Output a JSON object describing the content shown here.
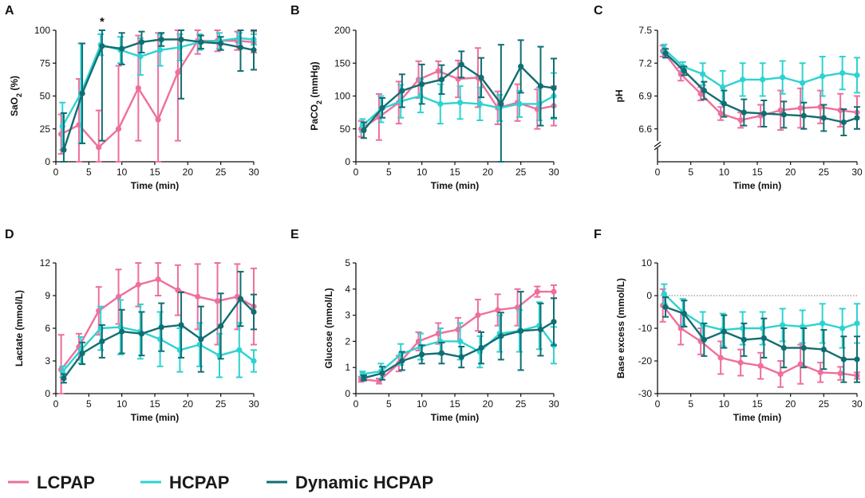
{
  "legend": [
    {
      "name": "LCPAP",
      "color": "#ee6f9c"
    },
    {
      "name": "HCPAP",
      "color": "#2ed2d2"
    },
    {
      "name": "Dynamic HCPAP",
      "color": "#116e72"
    }
  ],
  "chart_data": [
    {
      "type": "line",
      "panel": "A",
      "ylabel_parts": [
        {
          "t": "SaO"
        },
        {
          "t": "2",
          "sub": true
        },
        {
          "t": " (%)"
        }
      ],
      "xlabel": "Time (min)",
      "xlim": [
        0,
        30
      ],
      "xticks": [
        0,
        5,
        10,
        15,
        20,
        25,
        30
      ],
      "ylim": [
        0,
        100
      ],
      "yticks": [
        0,
        25,
        50,
        75,
        100
      ],
      "annotation": {
        "text": "*",
        "x": 7,
        "y": 100
      },
      "series": [
        {
          "name": "LCPAP",
          "x": [
            0.8,
            3.5,
            6.5,
            9.5,
            12.5,
            15.5,
            18.5,
            21.5,
            24.5,
            27.5,
            30
          ],
          "y": [
            21,
            28,
            11,
            25,
            56,
            32,
            68,
            92,
            92,
            92,
            91
          ],
          "err": [
            15,
            35,
            28,
            48,
            40,
            66,
            52,
            10,
            8,
            7,
            8
          ]
        },
        {
          "name": "HCPAP",
          "x": [
            1,
            3.8,
            6.8,
            9.8,
            12.8,
            15.8,
            18.8,
            21.8,
            24.8,
            27.8,
            30
          ],
          "y": [
            27,
            52,
            89,
            85,
            80,
            85,
            87,
            91,
            92,
            94,
            93
          ],
          "err": [
            18,
            38,
            8,
            10,
            14,
            12,
            10,
            6,
            6,
            4,
            4
          ]
        },
        {
          "name": "Dynamic HCPAP",
          "x": [
            1.2,
            4,
            7,
            10,
            13,
            16,
            19,
            22,
            25,
            28,
            30
          ],
          "y": [
            9,
            52,
            88,
            86,
            91,
            93,
            93,
            91,
            90,
            87,
            85
          ],
          "err": [
            28,
            38,
            72,
            12,
            8,
            5,
            45,
            5,
            5,
            18,
            15
          ]
        }
      ]
    },
    {
      "type": "line",
      "panel": "B",
      "ylabel_parts": [
        {
          "t": "PaCO"
        },
        {
          "t": "2",
          "sub": true
        },
        {
          "t": " (mmHg)"
        }
      ],
      "xlabel": "Time (min)",
      "xlim": [
        0,
        30
      ],
      "xticks": [
        0,
        5,
        10,
        15,
        20,
        25,
        30
      ],
      "ylim": [
        0,
        200
      ],
      "yticks": [
        0,
        50,
        100,
        150,
        200
      ],
      "series": [
        {
          "name": "LCPAP",
          "x": [
            0.8,
            3.5,
            6.5,
            9.5,
            12.5,
            15.5,
            18.5,
            21.5,
            24.5,
            27.5,
            30
          ],
          "y": [
            50,
            68,
            90,
            125,
            138,
            126,
            128,
            82,
            90,
            80,
            85
          ],
          "err": [
            12,
            35,
            32,
            28,
            15,
            28,
            45,
            25,
            28,
            30,
            30
          ]
        },
        {
          "name": "HCPAP",
          "x": [
            1,
            3.8,
            6.8,
            9.8,
            12.8,
            15.8,
            18.8,
            21.8,
            24.8,
            27.8,
            30
          ],
          "y": [
            55,
            80,
            92,
            100,
            88,
            90,
            88,
            82,
            88,
            88,
            100
          ],
          "err": [
            10,
            20,
            25,
            25,
            30,
            25,
            25,
            20,
            20,
            25,
            35
          ]
        },
        {
          "name": "Dynamic HCPAP",
          "x": [
            1.2,
            4,
            7,
            10,
            13,
            16,
            19,
            22,
            25,
            28,
            30
          ],
          "y": [
            48,
            82,
            108,
            118,
            125,
            148,
            128,
            88,
            145,
            115,
            112
          ],
          "err": [
            12,
            15,
            25,
            30,
            22,
            20,
            30,
            90,
            40,
            60,
            45
          ]
        }
      ]
    },
    {
      "type": "line",
      "panel": "C",
      "ylabel_parts": [
        {
          "t": "pH"
        }
      ],
      "xlabel": "Time (min)",
      "xlim": [
        0,
        30
      ],
      "xticks": [
        0,
        5,
        10,
        15,
        20,
        25,
        30
      ],
      "ylim": [
        6.3,
        7.5
      ],
      "yticks": [
        6.6,
        6.9,
        7.2,
        7.5
      ],
      "ybreak": true,
      "series": [
        {
          "name": "LCPAP",
          "x": [
            0.8,
            3.5,
            6.5,
            9.5,
            12.5,
            15.5,
            18.5,
            21.5,
            24.5,
            27.5,
            30
          ],
          "y": [
            7.31,
            7.1,
            6.92,
            6.74,
            6.68,
            6.72,
            6.77,
            6.79,
            6.8,
            6.77,
            6.75
          ],
          "err": [
            0.05,
            0.06,
            0.06,
            0.06,
            0.07,
            0.1,
            0.18,
            0.18,
            0.15,
            0.15,
            0.15
          ]
        },
        {
          "name": "HCPAP",
          "x": [
            1,
            3.8,
            6.8,
            9.8,
            12.8,
            15.8,
            18.8,
            21.8,
            24.8,
            27.8,
            30
          ],
          "y": [
            7.33,
            7.17,
            7.1,
            6.98,
            7.05,
            7.05,
            7.07,
            7.02,
            7.08,
            7.11,
            7.09
          ],
          "err": [
            0.04,
            0.04,
            0.1,
            0.15,
            0.15,
            0.15,
            0.15,
            0.18,
            0.18,
            0.15,
            0.16
          ]
        },
        {
          "name": "Dynamic HCPAP",
          "x": [
            1.2,
            4,
            7,
            10,
            13,
            16,
            19,
            22,
            25,
            28,
            30
          ],
          "y": [
            7.29,
            7.13,
            6.95,
            6.83,
            6.75,
            6.74,
            6.73,
            6.72,
            6.7,
            6.66,
            6.7
          ],
          "err": [
            0.04,
            0.04,
            0.08,
            0.12,
            0.12,
            0.12,
            0.12,
            0.12,
            0.12,
            0.12,
            0.1
          ]
        }
      ]
    },
    {
      "type": "line",
      "panel": "D",
      "ylabel_parts": [
        {
          "t": "Lactate (mmol/L)"
        }
      ],
      "xlabel": "Time (min)",
      "xlim": [
        0,
        30
      ],
      "xticks": [
        0,
        5,
        10,
        15,
        20,
        25,
        30
      ],
      "ylim": [
        0,
        12
      ],
      "yticks": [
        0,
        3,
        6,
        9,
        12
      ],
      "series": [
        {
          "name": "LCPAP",
          "x": [
            0.8,
            3.5,
            6.5,
            9.5,
            12.5,
            15.5,
            18.5,
            21.5,
            24.5,
            27.5,
            30
          ],
          "y": [
            2.2,
            4.3,
            7.6,
            8.9,
            10.0,
            10.5,
            9.5,
            8.9,
            8.5,
            8.9,
            8.0
          ],
          "err": [
            3.2,
            1.2,
            2.2,
            2.5,
            2.0,
            1.5,
            2.3,
            3.0,
            4.0,
            3.0,
            3.5
          ]
        },
        {
          "name": "HCPAP",
          "x": [
            1,
            3.8,
            6.8,
            9.8,
            12.8,
            15.8,
            18.8,
            21.8,
            24.8,
            27.8,
            30
          ],
          "y": [
            2.0,
            4.0,
            6.0,
            6.1,
            5.7,
            5.0,
            4.0,
            4.5,
            3.5,
            4.0,
            3.0
          ],
          "err": [
            0.5,
            1.2,
            2.0,
            2.5,
            2.5,
            2.5,
            2.0,
            2.0,
            2.0,
            2.5,
            1.0
          ]
        },
        {
          "name": "Dynamic HCPAP",
          "x": [
            1.2,
            4,
            7,
            10,
            13,
            16,
            19,
            22,
            25,
            28,
            30
          ],
          "y": [
            1.4,
            3.7,
            4.8,
            5.7,
            5.5,
            6.1,
            6.3,
            5.0,
            6.2,
            8.7,
            7.5
          ],
          "err": [
            0.4,
            1.0,
            1.5,
            2.0,
            2.0,
            2.2,
            3.0,
            3.0,
            3.0,
            2.5,
            1.6
          ]
        }
      ]
    },
    {
      "type": "line",
      "panel": "E",
      "ylabel_parts": [
        {
          "t": "Glucose (mmol/L)"
        }
      ],
      "xlabel": "Time (min)",
      "xlim": [
        0,
        30
      ],
      "xticks": [
        0,
        5,
        10,
        15,
        20,
        25,
        30
      ],
      "ylim": [
        0,
        5
      ],
      "yticks": [
        0,
        1,
        2,
        3,
        4,
        5
      ],
      "series": [
        {
          "name": "LCPAP",
          "x": [
            0.8,
            3.5,
            6.5,
            9.5,
            12.5,
            15.5,
            18.5,
            21.5,
            24.5,
            27.5,
            30
          ],
          "y": [
            0.55,
            0.48,
            1.15,
            2.0,
            2.3,
            2.45,
            3.0,
            3.2,
            3.3,
            3.9,
            3.9
          ],
          "err": [
            0.1,
            0.1,
            0.3,
            0.35,
            0.4,
            0.45,
            0.6,
            0.6,
            0.7,
            0.2,
            0.25
          ]
        },
        {
          "name": "HCPAP",
          "x": [
            1,
            3.8,
            6.8,
            9.8,
            12.8,
            15.8,
            18.8,
            21.8,
            24.8,
            27.8,
            30
          ],
          "y": [
            0.75,
            0.85,
            1.5,
            1.8,
            2.0,
            2.0,
            1.6,
            2.3,
            2.4,
            2.6,
            1.85
          ],
          "err": [
            0.1,
            0.3,
            0.4,
            0.5,
            0.5,
            0.7,
            0.6,
            0.7,
            0.8,
            0.9,
            0.7
          ]
        },
        {
          "name": "Dynamic HCPAP",
          "x": [
            1.2,
            4,
            7,
            10,
            13,
            16,
            19,
            22,
            25,
            28,
            30
          ],
          "y": [
            0.6,
            0.78,
            1.25,
            1.5,
            1.55,
            1.4,
            1.75,
            2.2,
            2.4,
            2.45,
            2.75
          ],
          "err": [
            0.1,
            0.25,
            0.35,
            0.35,
            0.4,
            0.4,
            0.6,
            0.9,
            1.5,
            1.0,
            0.9
          ]
        }
      ]
    },
    {
      "type": "line",
      "panel": "F",
      "ylabel_parts": [
        {
          "t": "Base excess (mmol/L)"
        }
      ],
      "xlabel": "Time (min)",
      "xlim": [
        0,
        30
      ],
      "xticks": [
        0,
        5,
        10,
        15,
        20,
        25,
        30
      ],
      "ylim": [
        -30,
        10
      ],
      "yticks": [
        -30,
        -20,
        -10,
        0,
        10
      ],
      "zero_line": 0,
      "series": [
        {
          "name": "LCPAP",
          "x": [
            0.8,
            3.5,
            6.5,
            9.5,
            12.5,
            15.5,
            18.5,
            21.5,
            24.5,
            27.5,
            30
          ],
          "y": [
            -3,
            -10,
            -14,
            -19,
            -20.5,
            -21.5,
            -24,
            -21,
            -23.5,
            -23.8,
            -24.5
          ],
          "err": [
            5,
            5,
            4,
            5,
            4,
            4,
            4,
            6,
            3,
            2,
            1
          ]
        },
        {
          "name": "HCPAP",
          "x": [
            1,
            3.8,
            6.8,
            9.8,
            12.8,
            15.8,
            18.8,
            21.8,
            24.8,
            27.8,
            30
          ],
          "y": [
            0.5,
            -5,
            -9,
            -10.5,
            -10,
            -10,
            -9,
            -9.5,
            -8.5,
            -10,
            -8.5
          ],
          "err": [
            3,
            4,
            4,
            5,
            5,
            5,
            5,
            5,
            6,
            6,
            6
          ]
        },
        {
          "name": "Dynamic HCPAP",
          "x": [
            1.2,
            4,
            7,
            10,
            13,
            16,
            19,
            22,
            25,
            28,
            30
          ],
          "y": [
            -3.5,
            -5.5,
            -13.5,
            -11,
            -13.5,
            -13,
            -16,
            -16,
            -16.5,
            -19.5,
            -19.5
          ],
          "err": [
            3,
            4,
            5,
            5,
            5,
            6,
            6,
            6,
            6,
            7,
            7
          ]
        }
      ]
    }
  ]
}
